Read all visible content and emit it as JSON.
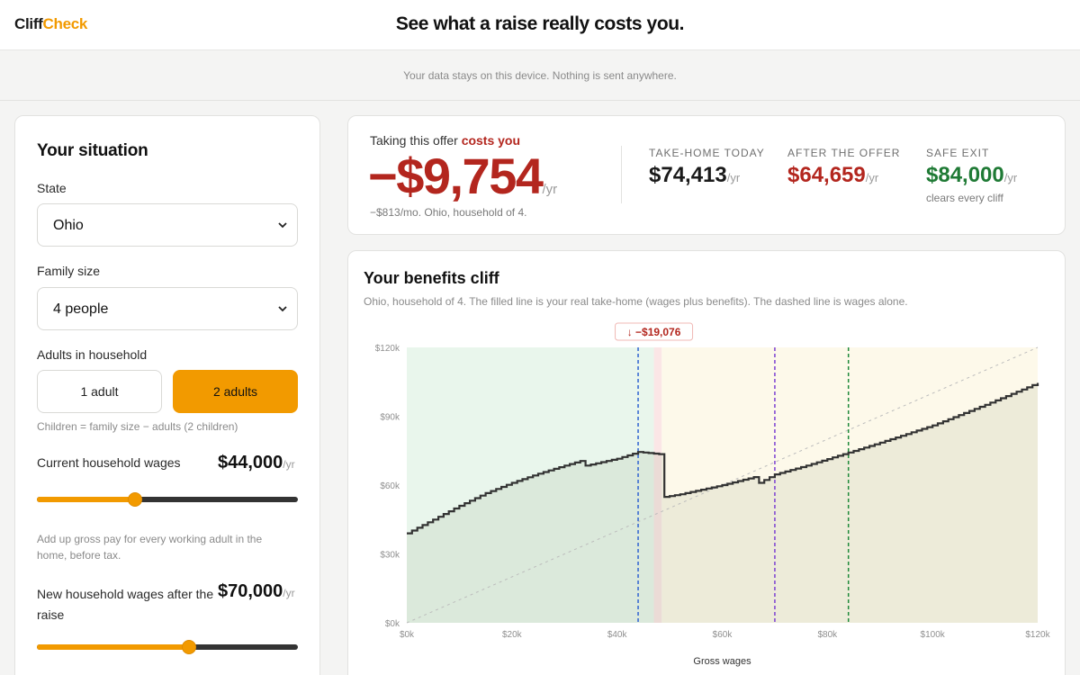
{
  "app": {
    "logo_part1": "Cliff",
    "logo_part2": "Check",
    "headline": "See what a raise really costs you.",
    "privacy_note": "Your data stays on this device. Nothing is sent anywhere.",
    "brand_color": "#f29a00"
  },
  "situation": {
    "title": "Your situation",
    "state_label": "State",
    "state_value": "Ohio",
    "family_label": "Family size",
    "family_value": "4 people",
    "adults_label": "Adults in household",
    "adults_options": [
      "1 adult",
      "2 adults"
    ],
    "adults_selected": "2 adults",
    "children_hint": "Children = family size − adults (2 children)",
    "current_wages_label": "Current household wages",
    "current_wages_value": "$44,000",
    "current_wages_unit": "/yr",
    "current_wages_slider_fraction": 0.375,
    "wages_hint": "Add up gross pay for every working adult in the home, before tax.",
    "new_wages_label": "New household wages after the raise",
    "new_wages_value": "$70,000",
    "new_wages_unit": "/yr",
    "new_wages_slider_fraction": 0.583
  },
  "summary": {
    "lead_text": "Taking this offer ",
    "lead_emphasis": "costs you",
    "big_value": "−$9,754",
    "big_unit": "/yr",
    "sub_text": "−$813/mo. Ohio, household of 4.",
    "stats": [
      {
        "caption": "TAKE-HOME TODAY",
        "value": "$74,413",
        "unit": "/yr",
        "color": "#1a1a1a",
        "foot": ""
      },
      {
        "caption": "AFTER THE OFFER",
        "value": "$64,659",
        "unit": "/yr",
        "color": "#b3261e",
        "foot": ""
      },
      {
        "caption": "SAFE EXIT",
        "value": "$84,000",
        "unit": "/yr",
        "color": "#1f7a35",
        "foot": "clears every cliff"
      }
    ]
  },
  "chart": {
    "title": "Your benefits cliff",
    "description": "Ohio, household of 4. The filled line is your real take-home (wages plus benefits). The dashed line is wages alone.",
    "cliff_badge": "↓ −$19,076"
  },
  "chart_data": {
    "type": "line",
    "xlabel": "Gross wages",
    "ylabel": "",
    "xlim": [
      0,
      120000
    ],
    "ylim": [
      0,
      120000
    ],
    "x_ticks": [
      "$0k",
      "$20k",
      "$40k",
      "$60k",
      "$80k",
      "$100k",
      "$120k"
    ],
    "y_ticks": [
      "$0k",
      "$30k",
      "$60k",
      "$90k",
      "$120k"
    ],
    "series": [
      {
        "style": "solid-stepped",
        "color": "#333333",
        "x": [
          0,
          5000,
          10000,
          15000,
          20000,
          25000,
          30000,
          33000,
          34000,
          40000,
          44000,
          48000,
          48100,
          52000,
          60000,
          66000,
          67000,
          70000,
          76000,
          84000,
          90000,
          100000,
          110000,
          120000
        ],
        "y": [
          39000,
          45000,
          51000,
          56500,
          61000,
          65000,
          68500,
          70500,
          68500,
          71500,
          74413,
          73500,
          54500,
          56000,
          60000,
          63500,
          61000,
          64659,
          68500,
          74200,
          78500,
          86000,
          95000,
          104500
        ]
      },
      {
        "style": "dashed",
        "color": "#bcbcbc",
        "x": [
          0,
          120000
        ],
        "y": [
          0,
          120000
        ]
      }
    ],
    "markers": [
      {
        "x": 44000,
        "color": "#2f62d0"
      },
      {
        "x": 70000,
        "color": "#7b3fd1"
      },
      {
        "x": 84000,
        "color": "#1f8a3a"
      }
    ],
    "regions": [
      {
        "x0": 0,
        "x1": 47000,
        "color": "#e9f6ec"
      },
      {
        "x0": 47000,
        "x1": 48500,
        "color": "#fbe6e6"
      },
      {
        "x0": 48500,
        "x1": 120000,
        "color": "#fdf9ea"
      }
    ],
    "cliff_drop": "−$19,076",
    "grid": false
  }
}
